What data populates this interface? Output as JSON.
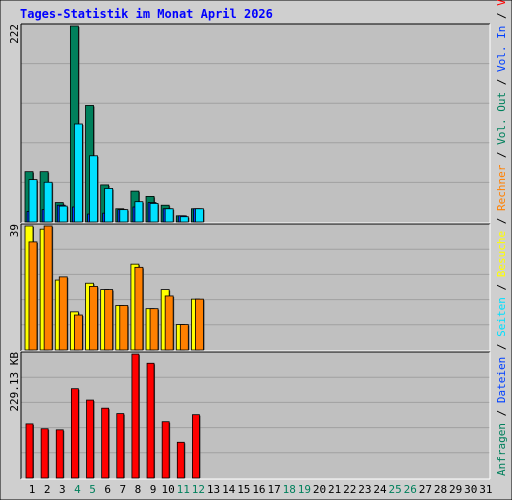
{
  "title": "Tages-Statistik im Monat April 2026",
  "colors": {
    "title": "#0000ff",
    "page_bg": "#cfcfcf",
    "plot_bg": "#c0c0c0",
    "grid": "#a0a0a0",
    "hits": "#00805c",
    "files": "#0040ff",
    "pages": "#00e0ff",
    "visits": "#ffff00",
    "sites": "#ff8000",
    "kbytes": "#ff0000",
    "weekend_label": "#00805c",
    "weekday_label": "#000000"
  },
  "right_legend": {
    "top": [
      {
        "text": "Anfragen",
        "color": "#00805c"
      },
      {
        "text": " / ",
        "color": "#000000"
      },
      {
        "text": "Dateien",
        "color": "#0040ff"
      },
      {
        "text": " / ",
        "color": "#000000"
      },
      {
        "text": "Seiten",
        "color": "#00e0ff"
      },
      {
        "text": " / ",
        "color": "#000000"
      },
      {
        "text": "Besuche",
        "color": "#ffff00"
      },
      {
        "text": " / ",
        "color": "#000000"
      },
      {
        "text": "Rechner",
        "color": "#ff8000"
      },
      {
        "text": " / ",
        "color": "#000000"
      },
      {
        "text": "Vol. Out",
        "color": "#00805c"
      },
      {
        "text": " / ",
        "color": "#000000"
      },
      {
        "text": "Vol. In",
        "color": "#0040ff"
      },
      {
        "text": " / ",
        "color": "#000000"
      },
      {
        "text": "Volumen",
        "color": "#ff0000"
      }
    ]
  },
  "chart_data": [
    {
      "type": "bar",
      "panel": "top",
      "ymax_label": "222",
      "ylim": [
        0,
        222
      ],
      "categories": [
        "1",
        "2",
        "3",
        "4",
        "5",
        "6",
        "7",
        "8",
        "9",
        "10",
        "11",
        "12",
        "13",
        "14",
        "15",
        "16",
        "17",
        "18",
        "19",
        "20",
        "21",
        "22",
        "23",
        "24",
        "25",
        "26",
        "27",
        "28",
        "29",
        "30",
        "31"
      ],
      "series": [
        {
          "name": "Anfragen",
          "values": [
            57,
            57,
            22,
            222,
            132,
            42,
            15,
            35,
            29,
            19,
            7,
            15,
            0,
            0,
            0,
            0,
            0,
            0,
            0,
            0,
            0,
            0,
            0,
            0,
            0,
            0,
            0,
            0,
            0,
            0,
            0
          ]
        },
        {
          "name": "Dateien",
          "values": [
            12,
            14,
            19,
            17,
            9,
            10,
            14,
            17,
            22,
            15,
            7,
            15,
            0,
            0,
            0,
            0,
            0,
            0,
            0,
            0,
            0,
            0,
            0,
            0,
            0,
            0,
            0,
            0,
            0,
            0,
            0
          ]
        },
        {
          "name": "Seiten",
          "values": [
            48,
            45,
            18,
            111,
            75,
            38,
            14,
            23,
            21,
            15,
            6,
            15,
            0,
            0,
            0,
            0,
            0,
            0,
            0,
            0,
            0,
            0,
            0,
            0,
            0,
            0,
            0,
            0,
            0,
            0,
            0
          ]
        }
      ]
    },
    {
      "type": "bar",
      "panel": "middle",
      "ymax_label": "39",
      "ylim": [
        0,
        39
      ],
      "categories": [
        "1",
        "2",
        "3",
        "4",
        "5",
        "6",
        "7",
        "8",
        "9",
        "10",
        "11",
        "12",
        "13",
        "14",
        "15",
        "16",
        "17",
        "18",
        "19",
        "20",
        "21",
        "22",
        "23",
        "24",
        "25",
        "26",
        "27",
        "28",
        "29",
        "30",
        "31"
      ],
      "series": [
        {
          "name": "Besuche",
          "values": [
            39,
            38,
            22,
            12,
            21,
            19,
            14,
            27,
            13,
            19,
            8,
            16,
            0,
            0,
            0,
            0,
            0,
            0,
            0,
            0,
            0,
            0,
            0,
            0,
            0,
            0,
            0,
            0,
            0,
            0,
            0
          ]
        },
        {
          "name": "Rechner",
          "values": [
            34,
            39,
            23,
            11,
            20,
            19,
            14,
            26,
            13,
            17,
            8,
            16,
            0,
            0,
            0,
            0,
            0,
            0,
            0,
            0,
            0,
            0,
            0,
            0,
            0,
            0,
            0,
            0,
            0,
            0,
            0
          ]
        }
      ]
    },
    {
      "type": "bar",
      "panel": "bottom",
      "ymax_label": "229.13 KB",
      "ylim": [
        0,
        229.13
      ],
      "categories": [
        "1",
        "2",
        "3",
        "4",
        "5",
        "6",
        "7",
        "8",
        "9",
        "10",
        "11",
        "12",
        "13",
        "14",
        "15",
        "16",
        "17",
        "18",
        "19",
        "20",
        "21",
        "22",
        "23",
        "24",
        "25",
        "26",
        "27",
        "28",
        "29",
        "30",
        "31"
      ],
      "series": [
        {
          "name": "Volumen",
          "values": [
            100,
            91,
            89,
            165,
            144,
            129,
            119,
            229,
            212,
            104,
            66,
            117,
            0,
            0,
            0,
            0,
            0,
            0,
            0,
            0,
            0,
            0,
            0,
            0,
            0,
            0,
            0,
            0,
            0,
            0,
            0
          ]
        }
      ]
    }
  ],
  "x_labels": [
    "1",
    "2",
    "3",
    "4",
    "5",
    "6",
    "7",
    "8",
    "9",
    "10",
    "11",
    "12",
    "13",
    "14",
    "15",
    "16",
    "17",
    "18",
    "19",
    "20",
    "21",
    "22",
    "23",
    "24",
    "25",
    "26",
    "27",
    "28",
    "29",
    "30",
    "31"
  ],
  "weekend_days": [
    4,
    5,
    11,
    12,
    18,
    19,
    25,
    26
  ]
}
